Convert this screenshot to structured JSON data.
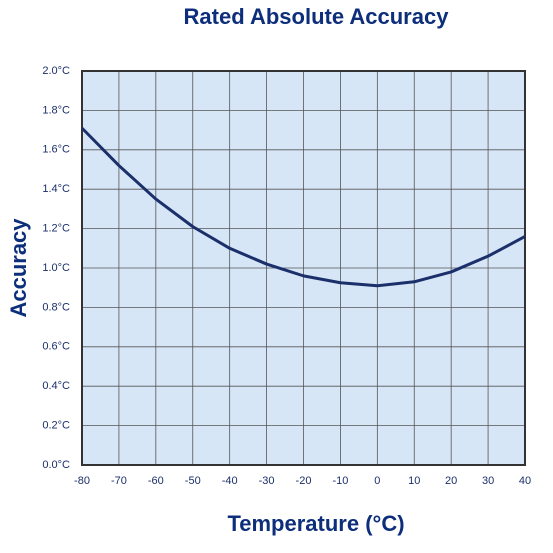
{
  "chart_data": {
    "type": "line",
    "title": "Rated Absolute Accuracy",
    "x_label": "Temperature (°C)",
    "y_label": "Accuracy",
    "x": [
      -80,
      -70,
      -60,
      -50,
      -40,
      -30,
      -20,
      -10,
      0,
      10,
      20,
      30,
      40
    ],
    "series": [
      {
        "color": "#1b2f6b",
        "values": [
          1.71,
          1.52,
          1.35,
          1.21,
          1.1,
          1.02,
          0.96,
          0.925,
          0.91,
          0.93,
          0.98,
          1.06,
          1.16
        ]
      }
    ],
    "xlim": [
      -80,
      40
    ],
    "xticks": [
      -80,
      -70,
      -60,
      -50,
      -40,
      -30,
      -20,
      -10,
      0,
      10,
      20,
      30,
      40
    ],
    "ylim": [
      0,
      2.0
    ],
    "yticks": [
      {
        "value": 0,
        "label": "0.0°C"
      },
      {
        "value": 0.2,
        "label": "0.2°C"
      },
      {
        "value": 0.4,
        "label": "0.4°C"
      },
      {
        "value": 0.6,
        "label": "0.6°C"
      },
      {
        "value": 0.8,
        "label": "0.8°C"
      },
      {
        "value": 1.0,
        "label": "1.0°C"
      },
      {
        "value": 1.2,
        "label": "1.2°C"
      },
      {
        "value": 1.4,
        "label": "1.4°C"
      },
      {
        "value": 1.6,
        "label": "1.6°C"
      },
      {
        "value": 1.8,
        "label": "1.8°C"
      },
      {
        "value": 2.0,
        "label": "2.0°C"
      }
    ],
    "grid": true,
    "background": "#d6e6f7"
  }
}
